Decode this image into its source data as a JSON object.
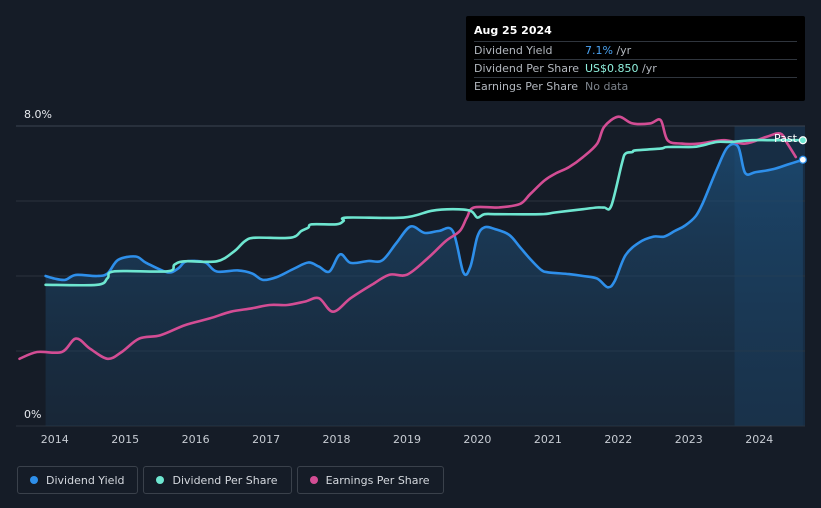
{
  "tooltip": {
    "date": "Aug 25 2024",
    "rows": [
      {
        "label": "Dividend Yield",
        "value": "7.1%",
        "unit": " /yr"
      },
      {
        "label": "Dividend Per Share",
        "value": "US$0.850",
        "unit": " /yr"
      },
      {
        "label": "Earnings Per Share",
        "value": "No data",
        "unit": ""
      }
    ]
  },
  "legend": [
    {
      "label": "Dividend Yield",
      "color": "#2e8fea"
    },
    {
      "label": "Dividend Per Share",
      "color": "#6ee6d0"
    },
    {
      "label": "Earnings Per Share",
      "color": "#d34d94"
    }
  ],
  "chart_data": {
    "type": "line",
    "title": "",
    "xlabel": "",
    "ylabel": "",
    "y_axis_labels": [
      "8.0%",
      "0%"
    ],
    "ylim": [
      0,
      8.0
    ],
    "xlim": [
      2013.45,
      2024.65
    ],
    "x_ticks": [
      "2014",
      "2015",
      "2016",
      "2017",
      "2018",
      "2019",
      "2020",
      "2021",
      "2022",
      "2023",
      "2024"
    ],
    "past_label": "Past",
    "past_region_start": 2023.65,
    "series": [
      {
        "name": "Dividend Yield",
        "color": "#2e8fea",
        "unit": "%",
        "area": true,
        "x": [
          2013.87,
          2014.0,
          2014.15,
          2014.3,
          2014.6,
          2014.75,
          2014.9,
          2015.15,
          2015.3,
          2015.6,
          2015.75,
          2015.85,
          2016.0,
          2016.15,
          2016.3,
          2016.6,
          2016.8,
          2016.95,
          2017.15,
          2017.4,
          2017.6,
          2017.75,
          2017.9,
          2018.05,
          2018.2,
          2018.45,
          2018.65,
          2018.85,
          2019.05,
          2019.25,
          2019.45,
          2019.65,
          2019.8,
          2019.9,
          2020.0,
          2020.1,
          2020.25,
          2020.45,
          2020.6,
          2020.75,
          2020.9,
          2021.0,
          2021.3,
          2021.5,
          2021.7,
          2021.85,
          2021.95,
          2022.1,
          2022.3,
          2022.5,
          2022.65,
          2022.8,
          2022.95,
          2023.1,
          2023.2,
          2023.4,
          2023.55,
          2023.7,
          2023.8,
          2023.95,
          2024.2,
          2024.4,
          2024.62
        ],
        "values": [
          4.0,
          3.93,
          3.9,
          4.03,
          4.0,
          4.07,
          4.43,
          4.52,
          4.35,
          4.1,
          4.2,
          4.38,
          4.4,
          4.35,
          4.12,
          4.15,
          4.07,
          3.9,
          3.97,
          4.2,
          4.36,
          4.25,
          4.12,
          4.58,
          4.35,
          4.4,
          4.42,
          4.88,
          5.32,
          5.15,
          5.2,
          5.2,
          4.1,
          4.25,
          5.05,
          5.3,
          5.25,
          5.1,
          4.78,
          4.45,
          4.17,
          4.1,
          4.05,
          4.0,
          3.93,
          3.7,
          3.87,
          4.55,
          4.9,
          5.05,
          5.05,
          5.2,
          5.35,
          5.6,
          5.95,
          6.85,
          7.43,
          7.45,
          6.75,
          6.77,
          6.85,
          6.97,
          7.1
        ]
      },
      {
        "name": "Dividend Per Share",
        "color": "#6ee6d0",
        "unit": "US$",
        "x": [
          2013.87,
          2014.6,
          2014.75,
          2014.85,
          2015.6,
          2015.7,
          2015.85,
          2016.3,
          2016.55,
          2016.7,
          2016.85,
          2017.35,
          2017.5,
          2017.6,
          2017.65,
          2018.0,
          2018.1,
          2018.15,
          2018.95,
          2019.35,
          2019.65,
          2019.9,
          2020.0,
          2020.1,
          2020.3,
          2020.9,
          2021.1,
          2021.5,
          2021.7,
          2021.8,
          2021.9,
          2022.05,
          2022.1,
          2022.2,
          2022.25,
          2022.6,
          2022.7,
          2023.05,
          2023.2,
          2023.4,
          2023.6,
          2023.9,
          2024.2,
          2024.4,
          2024.62
        ],
        "values": [
          0.42,
          0.42,
          0.44,
          0.46,
          0.46,
          0.48,
          0.49,
          0.49,
          0.52,
          0.55,
          0.56,
          0.56,
          0.58,
          0.59,
          0.6,
          0.6,
          0.61,
          0.62,
          0.62,
          0.64,
          0.645,
          0.64,
          0.62,
          0.63,
          0.63,
          0.63,
          0.635,
          0.645,
          0.65,
          0.65,
          0.655,
          0.78,
          0.81,
          0.815,
          0.82,
          0.825,
          0.83,
          0.83,
          0.835,
          0.845,
          0.845,
          0.85,
          0.85,
          0.85,
          0.85
        ]
      },
      {
        "name": "Earnings Per Share",
        "color": "#d34d94",
        "unit": "US$",
        "x": [
          2013.5,
          2013.75,
          2014.1,
          2014.3,
          2014.5,
          2014.75,
          2014.95,
          2015.2,
          2015.5,
          2015.85,
          2016.2,
          2016.5,
          2016.8,
          2017.05,
          2017.3,
          2017.55,
          2017.75,
          2017.95,
          2018.2,
          2018.5,
          2018.75,
          2019.0,
          2019.3,
          2019.55,
          2019.75,
          2019.85,
          2019.95,
          2020.3,
          2020.6,
          2020.75,
          2020.95,
          2021.1,
          2021.3,
          2021.5,
          2021.7,
          2021.8,
          2022.0,
          2022.2,
          2022.45,
          2022.6,
          2022.7,
          2022.9,
          2023.15,
          2023.5,
          2023.8,
          2024.1,
          2024.3,
          2024.4,
          2024.52
        ],
        "values": [
          0.2,
          0.22,
          0.22,
          0.26,
          0.23,
          0.2,
          0.22,
          0.26,
          0.27,
          0.3,
          0.32,
          0.34,
          0.35,
          0.36,
          0.36,
          0.37,
          0.38,
          0.34,
          0.38,
          0.42,
          0.45,
          0.45,
          0.5,
          0.55,
          0.58,
          0.62,
          0.65,
          0.65,
          0.66,
          0.69,
          0.73,
          0.75,
          0.77,
          0.8,
          0.84,
          0.89,
          0.92,
          0.9,
          0.9,
          0.91,
          0.85,
          0.84,
          0.84,
          0.85,
          0.84,
          0.86,
          0.87,
          0.84,
          0.8
        ]
      }
    ]
  }
}
